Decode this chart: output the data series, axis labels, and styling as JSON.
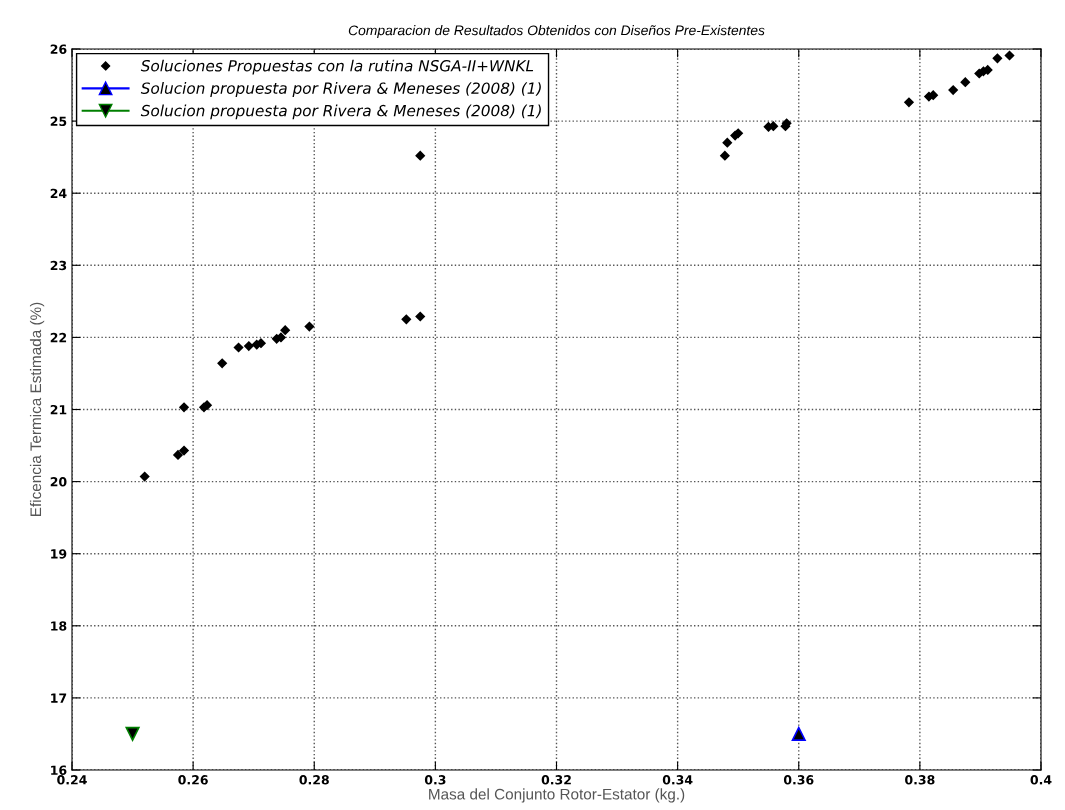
{
  "chart_data": {
    "type": "scatter",
    "title": "Comparacion de Resultados Obtenidos con Diseños Pre-Existentes",
    "xlabel": "Masa del Conjunto Rotor-Estator (kg.)",
    "ylabel": "Eficencia Termica Estimada (%)",
    "xlim": [
      0.24,
      0.4
    ],
    "xticks": [
      0.24,
      0.26,
      0.28,
      0.3,
      0.32,
      0.34,
      0.36,
      0.38,
      0.4
    ],
    "ylim": [
      16,
      26
    ],
    "yticks": [
      16,
      17,
      18,
      19,
      20,
      21,
      22,
      23,
      24,
      25,
      26
    ],
    "grid": true,
    "legend": "top left",
    "series": [
      {
        "name": "Soluciones Propuestas con la rutina NSGA-II+WNKL",
        "color": "#000000",
        "marker": "diamond",
        "x": [
          0.252,
          0.2575,
          0.2585,
          0.2585,
          0.2618,
          0.2623,
          0.2648,
          0.2675,
          0.2692,
          0.2705,
          0.2712,
          0.2738,
          0.2745,
          0.2752,
          0.2792,
          0.2952,
          0.2972,
          0.2975,
          0.2975,
          0.3478,
          0.3482,
          0.3495,
          0.35,
          0.355,
          0.3558,
          0.3578,
          0.358,
          0.3782,
          0.3815,
          0.3822,
          0.3855,
          0.3875,
          0.3898,
          0.3905,
          0.3912,
          0.3928,
          0.3948
        ],
        "values": [
          20.07,
          20.37,
          20.43,
          21.03,
          21.03,
          21.06,
          21.64,
          21.86,
          21.88,
          21.9,
          21.92,
          21.98,
          22.0,
          22.1,
          22.15,
          22.25,
          null,
          22.29,
          24.52,
          24.52,
          24.7,
          24.8,
          24.83,
          24.92,
          24.93,
          24.93,
          24.97,
          25.26,
          25.34,
          25.36,
          25.43,
          25.54,
          25.66,
          25.69,
          25.71,
          25.87,
          25.91
        ]
      },
      {
        "name": "Solucion propuesta por Rivera & Meneses (2008) (1)",
        "color": "#0000ff",
        "marker": "triangle",
        "x": [
          0.36
        ],
        "values": [
          16.5
        ]
      },
      {
        "name": "Solucion propuesta por Rivera & Meneses (2008) (1)",
        "color": "#007f00",
        "marker": "triangle_down",
        "x": [
          0.25
        ],
        "values": [
          16.5
        ]
      }
    ]
  }
}
